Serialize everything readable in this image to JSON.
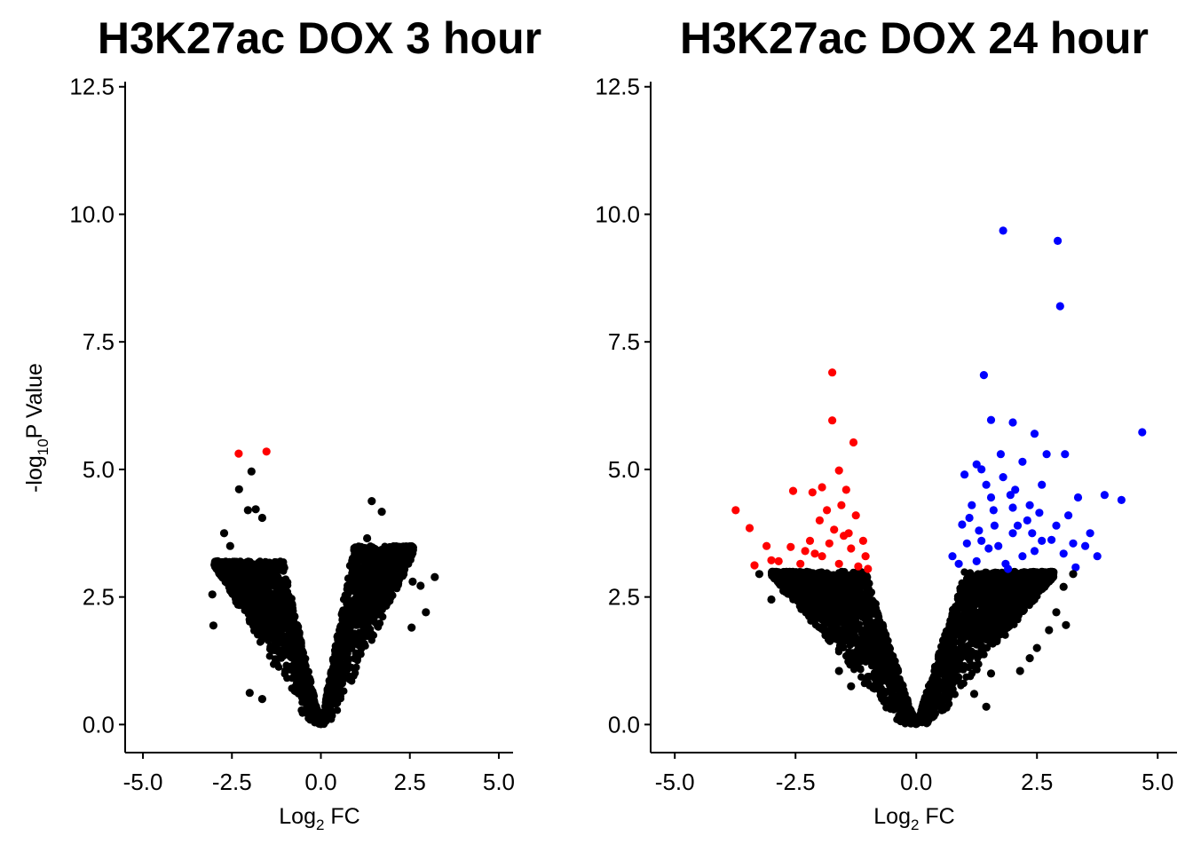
{
  "chart_data": [
    {
      "type": "scatter",
      "title": "H3K27ac DOX 3 hour",
      "xlabel_base": "Log",
      "xlabel_sub": "2",
      "xlabel_rest": " FC",
      "ylabel_pre": "-log",
      "ylabel_sub": "10",
      "ylabel_rest": "P Value",
      "xlim": [
        -5.5,
        5.4
      ],
      "ylim": [
        -0.55,
        12.6
      ],
      "x_ticks": [
        -5.0,
        -2.5,
        0.0,
        2.5,
        5.0
      ],
      "x_tick_labels": [
        "-5.0",
        "-2.5",
        "0.0",
        "2.5",
        "5.0"
      ],
      "y_ticks": [
        0.0,
        2.5,
        5.0,
        7.5,
        10.0,
        12.5
      ],
      "y_tick_labels": [
        "0.0",
        "2.5",
        "5.0",
        "7.5",
        "10.0",
        "12.5"
      ],
      "colors": {
        "not_significant": "#000000",
        "down": "#ff0000",
        "up": "#0000ff"
      },
      "series": [
        {
          "group": "down",
          "color": "#ff0000",
          "points": [
            [
              -2.31,
              5.31
            ],
            [
              -1.53,
              5.35
            ]
          ]
        },
        {
          "group": "not_significant",
          "color": "#000000",
          "points": [
            [
              -2.3,
              4.61
            ],
            [
              -1.95,
              4.96
            ],
            [
              -2.05,
              4.2
            ],
            [
              -1.83,
              4.22
            ],
            [
              -1.65,
              4.05
            ],
            [
              -2.72,
              3.75
            ],
            [
              -2.55,
              3.5
            ],
            [
              -2.9,
              3.2
            ],
            [
              -3.05,
              2.55
            ],
            [
              -3.02,
              1.94
            ],
            [
              -2.0,
              0.62
            ],
            [
              -1.65,
              0.5
            ],
            [
              1.43,
              4.38
            ],
            [
              1.71,
              4.17
            ],
            [
              1.3,
              3.65
            ],
            [
              1.62,
              3.4
            ],
            [
              2.15,
              2.85
            ],
            [
              2.58,
              2.8
            ],
            [
              2.8,
              2.72
            ],
            [
              3.2,
              2.89
            ],
            [
              2.95,
              2.2
            ],
            [
              2.55,
              1.9
            ]
          ]
        }
      ],
      "cloud": {
        "left_max_x": -3.0,
        "right_max_x": 2.6,
        "left_max_y": 3.2,
        "right_max_y": 3.5
      }
    },
    {
      "type": "scatter",
      "title": "H3K27ac DOX 24 hour",
      "xlabel_base": "Log",
      "xlabel_sub": "2",
      "xlabel_rest": " FC",
      "xlim": [
        -5.5,
        5.4
      ],
      "ylim": [
        -0.55,
        12.6
      ],
      "x_ticks": [
        -5.0,
        -2.5,
        0.0,
        2.5,
        5.0
      ],
      "x_tick_labels": [
        "-5.0",
        "-2.5",
        "0.0",
        "2.5",
        "5.0"
      ],
      "y_ticks": [
        0.0,
        2.5,
        5.0,
        7.5,
        10.0,
        12.5
      ],
      "y_tick_labels": [
        "0.0",
        "2.5",
        "5.0",
        "7.5",
        "10.0",
        "12.5"
      ],
      "colors": {
        "not_significant": "#000000",
        "down": "#ff0000",
        "up": "#0000ff"
      },
      "series": [
        {
          "group": "down",
          "color": "#ff0000",
          "points": [
            [
              -1.74,
              6.9
            ],
            [
              -1.74,
              5.96
            ],
            [
              -1.3,
              5.53
            ],
            [
              -3.74,
              4.2
            ],
            [
              -3.45,
              3.85
            ],
            [
              -2.55,
              4.58
            ],
            [
              -2.15,
              4.55
            ],
            [
              -1.95,
              4.65
            ],
            [
              -1.6,
              4.98
            ],
            [
              -1.45,
              4.6
            ],
            [
              -1.85,
              4.2
            ],
            [
              -1.55,
              4.3
            ],
            [
              -1.25,
              4.1
            ],
            [
              -2.0,
              4.0
            ],
            [
              -1.7,
              3.82
            ],
            [
              -2.2,
              3.6
            ],
            [
              -1.4,
              3.75
            ],
            [
              -1.1,
              3.6
            ],
            [
              -2.6,
              3.48
            ],
            [
              -3.1,
              3.5
            ],
            [
              -3.0,
              3.22
            ],
            [
              -3.35,
              3.12
            ],
            [
              -2.85,
              3.2
            ],
            [
              -2.1,
              3.35
            ],
            [
              -1.35,
              3.45
            ],
            [
              -1.05,
              3.3
            ],
            [
              -2.4,
              3.15
            ],
            [
              -1.8,
              3.55
            ],
            [
              -1.95,
              3.3
            ],
            [
              -1.6,
              3.15
            ],
            [
              -1.2,
              3.1
            ],
            [
              -2.3,
              3.4
            ],
            [
              -1.5,
              3.7
            ],
            [
              -1.0,
              3.05
            ]
          ]
        },
        {
          "group": "up",
          "color": "#0000ff",
          "points": [
            [
              1.8,
              9.68
            ],
            [
              2.93,
              9.48
            ],
            [
              2.98,
              8.2
            ],
            [
              1.4,
              6.85
            ],
            [
              1.55,
              5.97
            ],
            [
              2.0,
              5.92
            ],
            [
              4.68,
              5.73
            ],
            [
              2.45,
              5.7
            ],
            [
              3.08,
              5.3
            ],
            [
              2.7,
              5.3
            ],
            [
              1.25,
              5.1
            ],
            [
              1.75,
              5.3
            ],
            [
              2.2,
              5.15
            ],
            [
              1.0,
              4.9
            ],
            [
              1.45,
              4.7
            ],
            [
              2.6,
              4.7
            ],
            [
              3.35,
              4.45
            ],
            [
              3.9,
              4.5
            ],
            [
              4.25,
              4.4
            ],
            [
              1.15,
              4.3
            ],
            [
              1.6,
              4.2
            ],
            [
              2.3,
              4.0
            ],
            [
              3.15,
              4.1
            ],
            [
              0.95,
              3.92
            ],
            [
              1.3,
              3.8
            ],
            [
              2.0,
              3.75
            ],
            [
              2.8,
              3.62
            ],
            [
              3.5,
              3.5
            ],
            [
              3.75,
              3.3
            ],
            [
              1.05,
              3.55
            ],
            [
              1.7,
              3.5
            ],
            [
              2.45,
              3.4
            ],
            [
              3.05,
              3.35
            ],
            [
              3.3,
              3.08
            ],
            [
              0.75,
              3.3
            ],
            [
              1.25,
              3.2
            ],
            [
              1.85,
              3.15
            ],
            [
              2.2,
              3.3
            ],
            [
              2.6,
              3.6
            ],
            [
              1.5,
              3.45
            ],
            [
              1.95,
              4.5
            ],
            [
              2.35,
              4.3
            ],
            [
              1.8,
              4.85
            ],
            [
              1.35,
              3.6
            ],
            [
              2.1,
              3.9
            ],
            [
              0.88,
              3.15
            ],
            [
              1.62,
              3.9
            ],
            [
              2.55,
              4.15
            ],
            [
              3.6,
              3.75
            ],
            [
              2.9,
              3.9
            ],
            [
              1.1,
              4.05
            ],
            [
              1.55,
              4.45
            ],
            [
              2.0,
              4.25
            ],
            [
              1.35,
              5.0
            ],
            [
              2.05,
              4.6
            ],
            [
              3.25,
              3.55
            ],
            [
              1.9,
              3.05
            ],
            [
              2.4,
              3.75
            ]
          ]
        },
        {
          "group": "not_significant",
          "color": "#000000",
          "points": [
            [
              -3.25,
              2.95
            ],
            [
              -2.75,
              2.62
            ],
            [
              -2.25,
              2.65
            ],
            [
              -1.7,
              2.9
            ],
            [
              -3.0,
              2.45
            ],
            [
              -1.6,
              1.05
            ],
            [
              -1.35,
              0.75
            ],
            [
              1.45,
              0.35
            ],
            [
              1.2,
              0.6
            ],
            [
              1.55,
              1.0
            ],
            [
              2.4,
              2.6
            ],
            [
              2.9,
              2.2
            ],
            [
              3.05,
              2.7
            ],
            [
              3.1,
              1.95
            ],
            [
              2.75,
              1.85
            ],
            [
              2.5,
              1.5
            ],
            [
              2.35,
              1.3
            ],
            [
              2.15,
              1.05
            ],
            [
              3.25,
              2.95
            ],
            [
              2.2,
              2.85
            ]
          ]
        }
      ],
      "cloud": {
        "left_max_x": -3.0,
        "right_max_x": 2.85,
        "left_max_y": 3.0,
        "right_max_y": 3.0
      }
    }
  ]
}
